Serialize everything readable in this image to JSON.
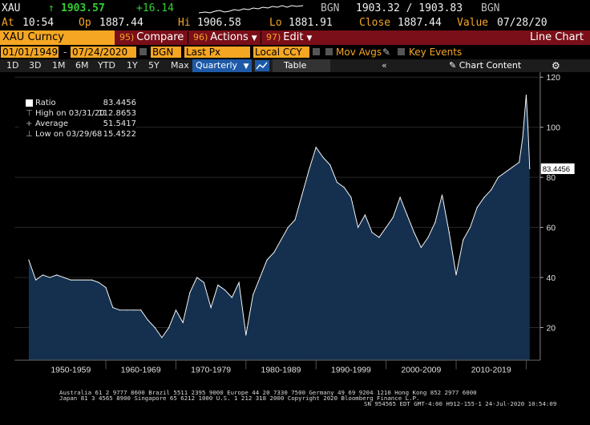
{
  "quote": {
    "ticker": "XAU",
    "arrow": "↑",
    "last": "1903.57",
    "change": "+16.14",
    "source1": "BGN",
    "bid_ask": "1903.32 / 1903.83",
    "source2": "BGN",
    "at_label": "At",
    "time": "10:54",
    "op_label": "Op",
    "open": "1887.44",
    "hi_label": "Hi",
    "high": "1906.58",
    "lo_label": "Lo",
    "low": "1881.91",
    "close_label": "Close",
    "close": "1887.44",
    "value_label": "Value",
    "value_date": "07/28/20"
  },
  "function_bar": {
    "security": "XAU Curncy",
    "compare_num": "95)",
    "compare_label": "Compare",
    "actions_num": "96)",
    "actions_label": "Actions",
    "edit_num": "97)",
    "edit_label": "Edit",
    "title": "Line Chart"
  },
  "params": {
    "start_date": "01/01/1949",
    "end_date": "07/24/2020",
    "source": "BGN",
    "field": "Last Px",
    "currency": "Local CCY",
    "mov_avgs_label": "Mov Avgs",
    "key_events_label": "Key Events"
  },
  "periods": {
    "items": [
      "1D",
      "3D",
      "1M",
      "6M",
      "YTD",
      "1Y",
      "5Y",
      "Max"
    ],
    "frequency": "Quarterly",
    "table_label": "Table",
    "chart_content_label": "Chart Content"
  },
  "legend": {
    "ratio_label": "Ratio",
    "ratio_value": "83.4456",
    "high_label": "High on 03/31/20",
    "high_value": "112.8653",
    "avg_label": "Average",
    "avg_value": "51.5417",
    "low_label": "Low on 03/29/68",
    "low_value": "15.4522"
  },
  "colors": {
    "accent_orange": "#f5a623",
    "function_bar": "#7a0f19",
    "chart_fill": "#15304f",
    "chart_line": "#ffffff",
    "up_green": "#33d033"
  },
  "chart_data": {
    "type": "area",
    "title": "",
    "xlabel": "",
    "ylabel": "",
    "ylim": [
      7,
      122
    ],
    "yticks": [
      20,
      40,
      60,
      80,
      100,
      120
    ],
    "x_tick_labels": [
      "1950-1959",
      "1960-1969",
      "1970-1979",
      "1980-1989",
      "1990-1999",
      "2000-2009",
      "2010-2019"
    ],
    "last_value_label": "83.4456",
    "x": [
      1949,
      1950,
      1951,
      1952,
      1953,
      1954,
      1955,
      1956,
      1957,
      1958,
      1959,
      1960,
      1961,
      1962,
      1963,
      1964,
      1965,
      1966,
      1967,
      1968,
      1969,
      1970,
      1971,
      1972,
      1973,
      1974,
      1975,
      1976,
      1977,
      1978,
      1979,
      1980,
      1981,
      1982,
      1983,
      1984,
      1985,
      1986,
      1987,
      1988,
      1989,
      1990,
      1991,
      1992,
      1993,
      1994,
      1995,
      1996,
      1997,
      1998,
      1999,
      2000,
      2001,
      2002,
      2003,
      2004,
      2005,
      2006,
      2007,
      2008,
      2009,
      2010,
      2011,
      2012,
      2013,
      2014,
      2015,
      2016,
      2017,
      2018,
      2019,
      2019.5,
      2020,
      2020.25,
      2020.5
    ],
    "values": [
      47,
      39,
      41,
      40,
      41,
      40,
      39,
      39,
      39,
      39,
      38,
      36,
      28,
      27,
      27,
      27,
      27,
      23,
      20,
      16,
      20,
      27,
      22,
      34,
      40,
      38,
      28,
      37,
      35,
      32,
      38,
      17,
      33,
      40,
      47,
      50,
      55,
      60,
      63,
      73,
      83,
      92,
      88,
      85,
      78,
      76,
      72,
      60,
      65,
      58,
      56,
      60,
      64,
      72,
      65,
      58,
      52,
      56,
      62,
      73,
      58,
      41,
      55,
      60,
      68,
      72,
      75,
      80,
      82,
      84,
      86,
      96,
      112.9,
      100,
      83.4456
    ]
  },
  "footer": {
    "line1": "Australia 61 2 9777 8600 Brazil 5511 2395 9000 Europe 44 20 7330 7500 Germany 49 69 9204 1210 Hong Kong 852 2977 6000",
    "line2": "Japan 81 3 4565 8900        Singapore 65 6212 1000      U.S. 1 212 318 2000         Copyright 2020 Bloomberg Finance L.P.",
    "line3": "SN 954565 EDT  GMT-4:00 H912-155-1 24-Jul-2020 10:54:09"
  }
}
